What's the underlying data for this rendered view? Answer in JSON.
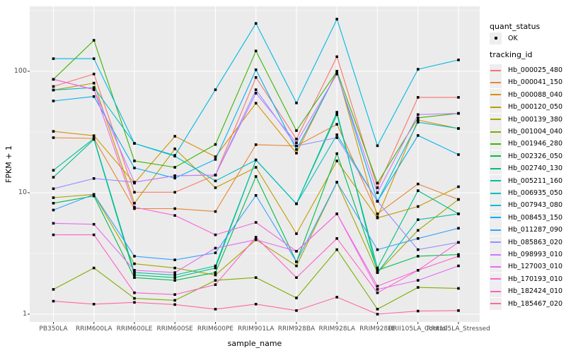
{
  "figure": {
    "background": "#ffffff",
    "panel_background": "#ebebeb",
    "gridline_color": "#ffffff",
    "tick_mark_color": "#333333",
    "tick_label_color": "#4d4d4d",
    "point_color": "#000000"
  },
  "axes": {
    "x_title": "sample_name",
    "y_title": "FPKM + 1",
    "y_tick_labels": [
      "100",
      "10",
      "1"
    ]
  },
  "legend": {
    "quant_title": "quant_status",
    "quant_items": [
      {
        "label": "OK",
        "marker": "black-point"
      }
    ],
    "tracking_title": "tracking_id"
  },
  "chart_data": {
    "type": "line",
    "xlabel": "sample_name",
    "ylabel": "FPKM + 1",
    "y_scale": "log10",
    "y_ticks": [
      1,
      10,
      100
    ],
    "ylim": [
      0.95,
      320
    ],
    "grid": true,
    "legend_position": "right",
    "point_marker": "small black square (quant_status OK)",
    "categories": [
      "PB350LA",
      "RRIM600LA",
      "RRIM600LE",
      "RRIM600SE",
      "RRIM600PE",
      "RRIM901LA",
      "RRIM928BA",
      "RRIM928LA",
      "RRIM928LE",
      "RRII105LA_Control",
      "RRII105LA_Stressed"
    ],
    "series": [
      {
        "name": "Hb_000025_480",
        "color": "#F8766D",
        "values": [
          75,
          95,
          10.1,
          10.1,
          14,
          89,
          27.7,
          132,
          11,
          61,
          61
        ]
      },
      {
        "name": "Hb_000041_150",
        "color": "#EA8331",
        "values": [
          28.4,
          28,
          7.4,
          7.4,
          7.0,
          24.9,
          24.3,
          36.6,
          6.7,
          11.8,
          8.8
        ]
      },
      {
        "name": "Hb_000088_040",
        "color": "#D89000",
        "values": [
          32,
          29.5,
          12,
          29.2,
          19.8,
          54.6,
          21.2,
          100,
          6.3,
          39.7,
          33.8
        ]
      },
      {
        "name": "Hb_000120_050",
        "color": "#C09B00",
        "values": [
          70,
          80,
          8.2,
          23,
          11,
          16.2,
          4.6,
          18.3,
          6.2,
          7.7,
          11.2
        ]
      },
      {
        "name": "Hb_000139_380",
        "color": "#A3A500",
        "values": [
          9.1,
          9.7,
          2.6,
          2.4,
          2.1,
          4.1,
          2.5,
          12.2,
          2.2,
          4.9,
          8.8
        ]
      },
      {
        "name": "Hb_001004_040",
        "color": "#7CAE00",
        "values": [
          1.6,
          2.4,
          1.35,
          1.3,
          1.9,
          2.0,
          1.36,
          3.4,
          1.1,
          1.66,
          1.63
        ]
      },
      {
        "name": "Hb_001946_280",
        "color": "#39B600",
        "values": [
          86,
          180,
          18.3,
          16.2,
          25,
          147,
          32.5,
          100,
          12,
          41.4,
          45
        ]
      },
      {
        "name": "Hb_002326_050",
        "color": "#00BB4E",
        "values": [
          8.2,
          9.4,
          2.0,
          1.9,
          2.2,
          13.6,
          2.7,
          21,
          2.3,
          3.0,
          3.1
        ]
      },
      {
        "name": "Hb_002740_130",
        "color": "#00BF7D",
        "values": [
          13.4,
          27.5,
          2.1,
          2.0,
          2.4,
          18.6,
          8.1,
          44,
          2.4,
          10.4,
          6.7
        ]
      },
      {
        "name": "Hb_005211_160",
        "color": "#00C1A3",
        "values": [
          15.3,
          28,
          2.2,
          2.1,
          2.5,
          18.6,
          8.1,
          46,
          2.2,
          6.0,
          6.7
        ]
      },
      {
        "name": "Hb_006935_050",
        "color": "#00BFC4",
        "values": [
          70,
          73.5,
          25.5,
          20,
          12.5,
          18.6,
          8.1,
          30,
          8.5,
          38.1,
          33.8
        ]
      },
      {
        "name": "Hb_007943_080",
        "color": "#00BAE0",
        "values": [
          127,
          127,
          25.5,
          20.3,
          70.5,
          248,
          54.9,
          269,
          24.4,
          104,
          124
        ]
      },
      {
        "name": "Hb_008453_150",
        "color": "#00B0F6",
        "values": [
          57,
          62,
          16.0,
          13.2,
          18.8,
          103,
          22.7,
          97,
          8.5,
          29.6,
          20.6
        ]
      },
      {
        "name": "Hb_011287_090",
        "color": "#35A2FF",
        "values": [
          7.2,
          9.7,
          3.0,
          2.8,
          3.2,
          9.5,
          2.7,
          12.2,
          3.4,
          4.2,
          5.1
        ]
      },
      {
        "name": "Hb_085863_020",
        "color": "#9590FF",
        "values": [
          10.8,
          13.1,
          12.2,
          13.8,
          14.0,
          70.5,
          24.3,
          28.4,
          8.5,
          3.4,
          3.9
        ]
      },
      {
        "name": "Hb_098993_010",
        "color": "#C77CFF",
        "values": [
          86,
          70.5,
          12.2,
          13.8,
          14,
          66,
          25.8,
          95,
          10,
          44,
          45
        ]
      },
      {
        "name": "Hb_127003_010",
        "color": "#E76BF3",
        "values": [
          5.6,
          5.5,
          2.3,
          2.2,
          3.5,
          4.1,
          3.3,
          6.7,
          1.6,
          1.9,
          2.5
        ]
      },
      {
        "name": "Hb_170193_010",
        "color": "#FA62DB",
        "values": [
          86,
          71,
          7.6,
          6.5,
          4.5,
          5.7,
          3.3,
          6.7,
          1.7,
          2.3,
          3.9
        ]
      },
      {
        "name": "Hb_182424_010",
        "color": "#FF61C9",
        "values": [
          4.5,
          4.5,
          1.5,
          1.45,
          1.75,
          4.3,
          2.0,
          4.2,
          1.5,
          2.3,
          3.0
        ]
      },
      {
        "name": "Hb_185467_020",
        "color": "#FF67A4",
        "values": [
          1.28,
          1.21,
          1.25,
          1.2,
          1.1,
          1.21,
          1.07,
          1.38,
          1.0,
          1.06,
          1.07
        ]
      }
    ]
  }
}
